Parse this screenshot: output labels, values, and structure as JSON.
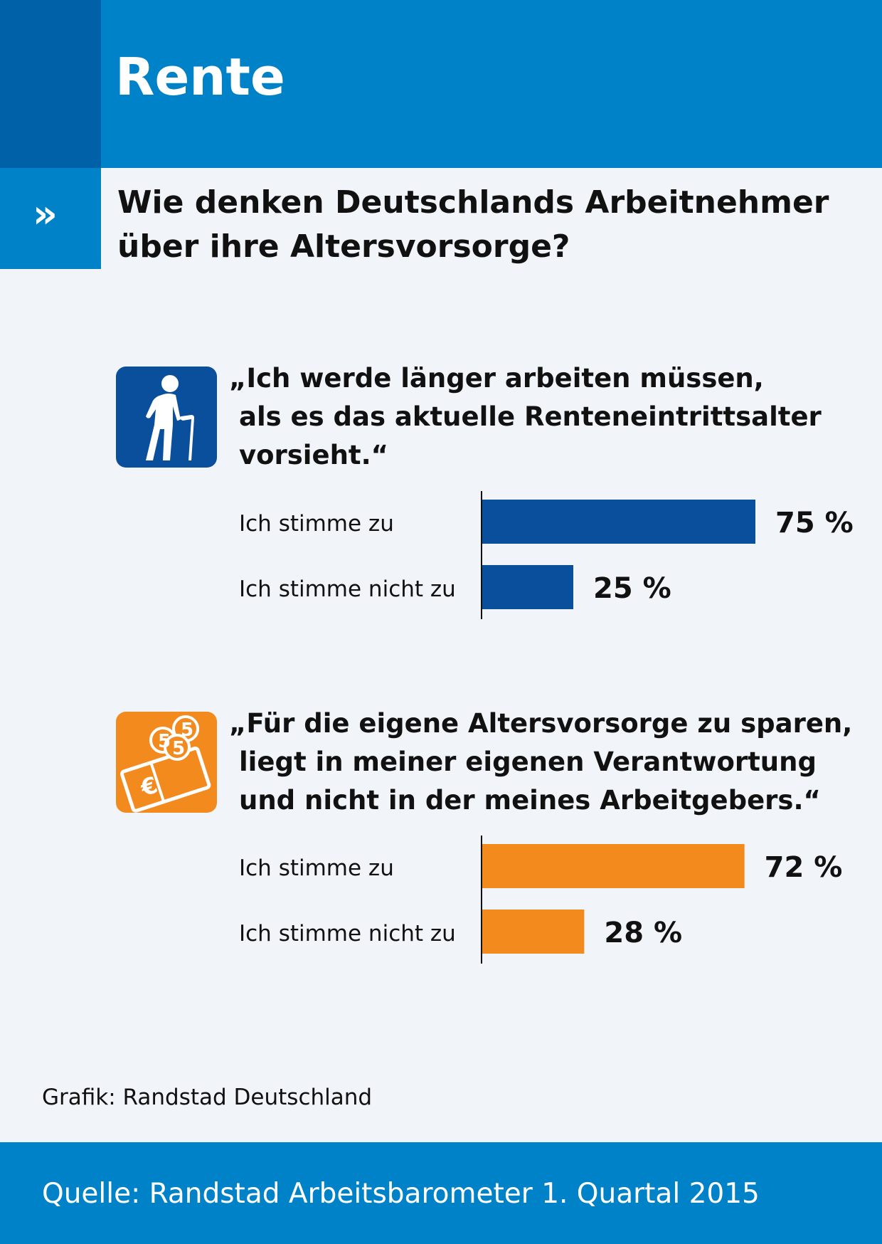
{
  "header": {
    "title": "Rente",
    "arrow": "»"
  },
  "question": {
    "line1": "Wie denken Deutschlands Arbeitnehmer",
    "line2": "über ihre Altersvorsorge?"
  },
  "sections": [
    {
      "icon": "elderly-person-cane-icon",
      "quote_lines": [
        "„Ich werde länger arbeiten müssen,",
        "als es das aktuelle Renteneintrittsalter",
        "vorsieht.“"
      ]
    },
    {
      "icon": "euro-money-coins-icon",
      "quote_lines": [
        "„Für die eigene Altersvorsorge zu sparen,",
        "liegt in meiner eigenen Verantwortung",
        "und nicht in der meines Arbeitgebers.“"
      ]
    }
  ],
  "colors": {
    "blue": "#0a4f9b",
    "orange": "#f28a1e",
    "header_blue": "#0082c8",
    "dark_blue": "#0060a8"
  },
  "chart_data": [
    {
      "type": "bar",
      "orientation": "horizontal",
      "categories": [
        "Ich stimme zu",
        "Ich stimme nicht zu"
      ],
      "values": [
        75,
        25
      ],
      "value_labels": [
        "75 %",
        "25 %"
      ],
      "unit": "%",
      "xlim": [
        0,
        100
      ],
      "color": "#0a4f9b"
    },
    {
      "type": "bar",
      "orientation": "horizontal",
      "categories": [
        "Ich stimme zu",
        "Ich stimme nicht zu"
      ],
      "values": [
        72,
        28
      ],
      "value_labels": [
        "72 %",
        "28 %"
      ],
      "unit": "%",
      "xlim": [
        0,
        100
      ],
      "color": "#f28a1e"
    }
  ],
  "footer": {
    "credit": "Grafik: Randstad Deutschland",
    "source": "Quelle: Randstad Arbeitsbarometer 1. Quartal 2015"
  }
}
